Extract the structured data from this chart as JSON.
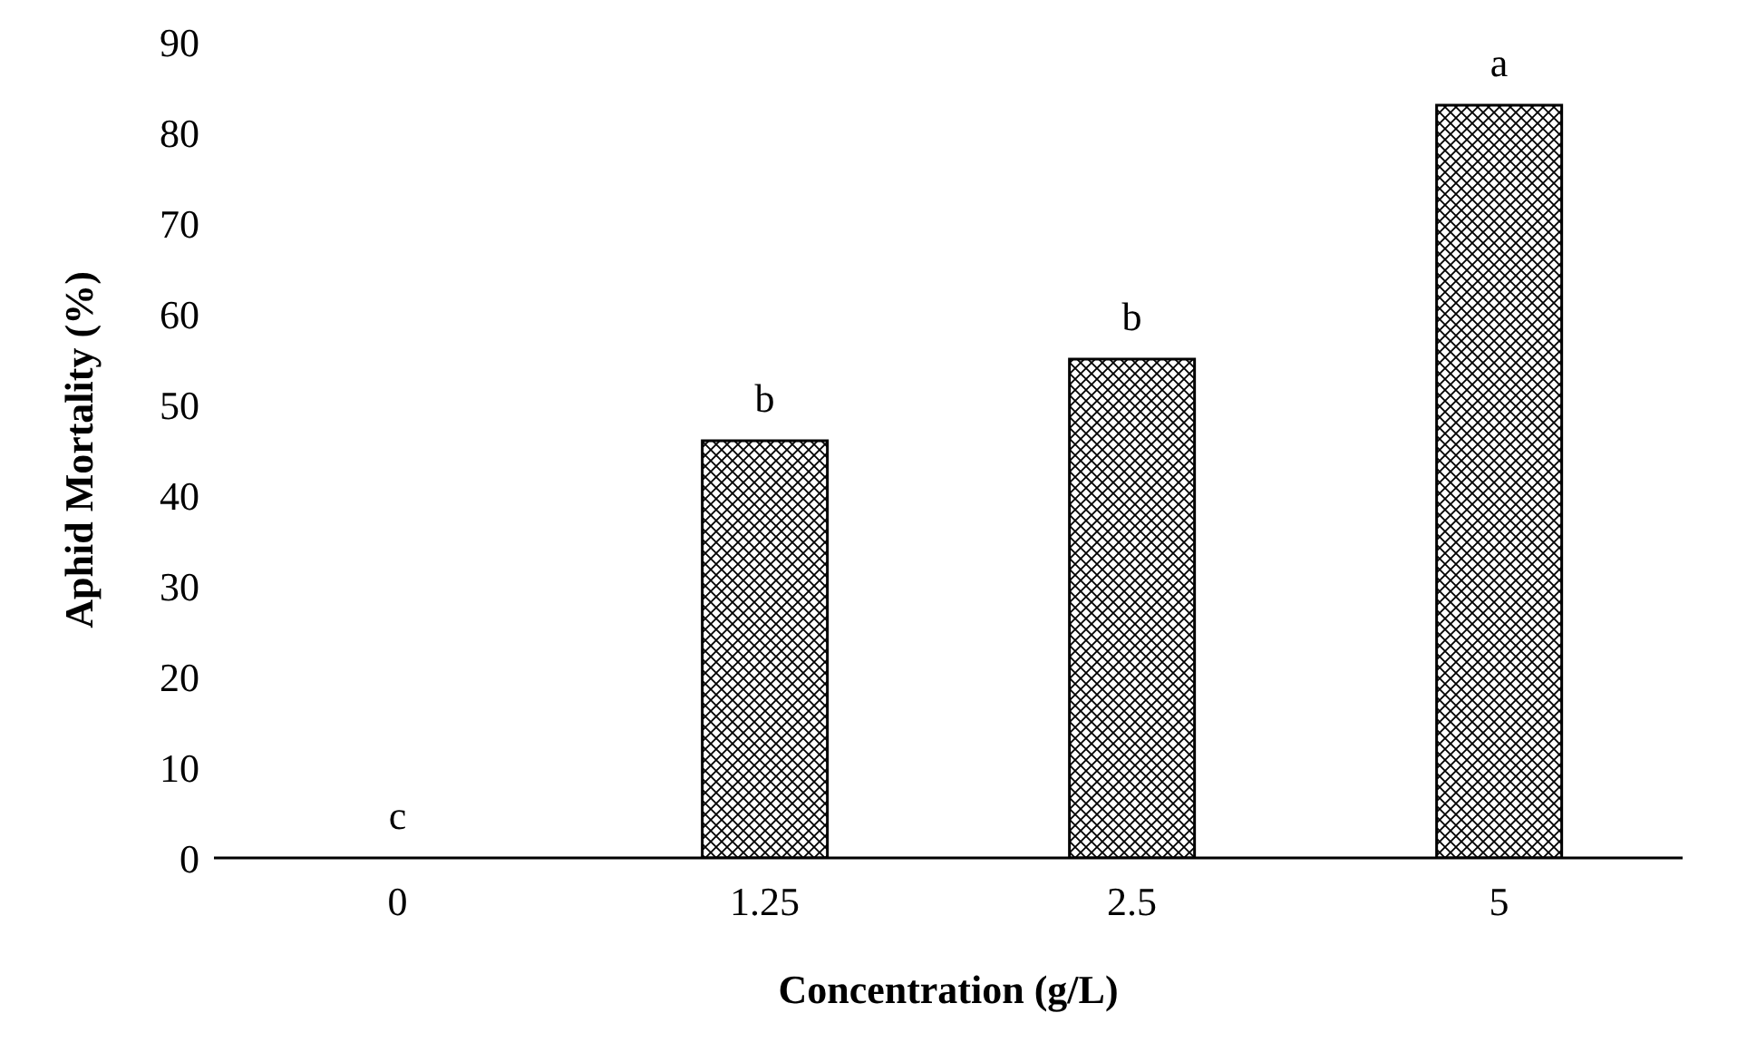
{
  "chart_data": {
    "type": "bar",
    "xlabel": "Concentration (g/L)",
    "ylabel": "Aphid Mortality (%)",
    "categories": [
      "0",
      "1.25",
      "2.5",
      "5"
    ],
    "values": [
      0,
      46,
      55,
      83
    ],
    "color": "#000000",
    "ylim": [
      0,
      90
    ],
    "yticks": [
      0,
      10,
      20,
      30,
      40,
      50,
      60,
      70,
      80,
      90
    ],
    "grid": false,
    "legend": false,
    "annotations": [
      {
        "text": "c",
        "x": "0",
        "y": 0
      },
      {
        "text": "b",
        "x": "1.25",
        "y": 46
      },
      {
        "text": "b",
        "x": "2.5",
        "y": 55
      },
      {
        "text": "a",
        "x": "5",
        "y": 83
      }
    ]
  }
}
